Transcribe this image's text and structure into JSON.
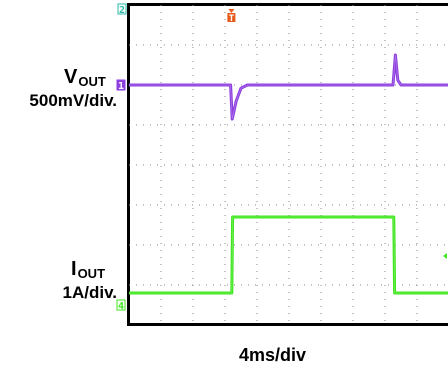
{
  "chart_data": {
    "type": "line",
    "title": "",
    "xlabel": "4ms/div",
    "x_unit": "ms",
    "x_per_div_ms": 4,
    "xlim": [
      0,
      40
    ],
    "grid": true,
    "channels": [
      {
        "id": "1",
        "label": "VOUT",
        "label_main": "V",
        "label_sub": "OUT",
        "scale": "500mV/div.",
        "volts_per_div": 0.5,
        "marker": "1",
        "color": "#8e3fe0",
        "baseline_div": 2.0,
        "points": [
          {
            "t": 0,
            "div": 0
          },
          {
            "t": 12.7,
            "div": 0
          },
          {
            "t": 12.9,
            "div": -0.85
          },
          {
            "t": 13.4,
            "div": -0.4
          },
          {
            "t": 14.0,
            "div": -0.08
          },
          {
            "t": 14.8,
            "div": 0
          },
          {
            "t": 33.0,
            "div": 0
          },
          {
            "t": 33.3,
            "div": 0.75
          },
          {
            "t": 33.6,
            "div": 0.12
          },
          {
            "t": 34.0,
            "div": 0
          },
          {
            "t": 40,
            "div": 0
          }
        ]
      },
      {
        "id": "4",
        "label": "IOUT",
        "label_main": "I",
        "label_sub": "OUT",
        "scale": "1A/div.",
        "amps_per_div": 1,
        "marker": "4",
        "color": "#3fe61e",
        "baseline_div": 7.2,
        "points": [
          {
            "t": 0,
            "div": 0
          },
          {
            "t": 12.85,
            "div": 0
          },
          {
            "t": 12.95,
            "div": 1.9
          },
          {
            "t": 33.1,
            "div": 1.9
          },
          {
            "t": 33.2,
            "div": 0
          },
          {
            "t": 40,
            "div": 0
          }
        ]
      }
    ],
    "channel_markers": [
      "2"
    ],
    "trigger_marker": "T",
    "trigger_time_ms": 12.8
  },
  "colors": {
    "frame": "#000000",
    "grid_dot": "#8a8a8a",
    "trigger": "#e85a1c",
    "ch2_marker": "#2bb8a8"
  }
}
